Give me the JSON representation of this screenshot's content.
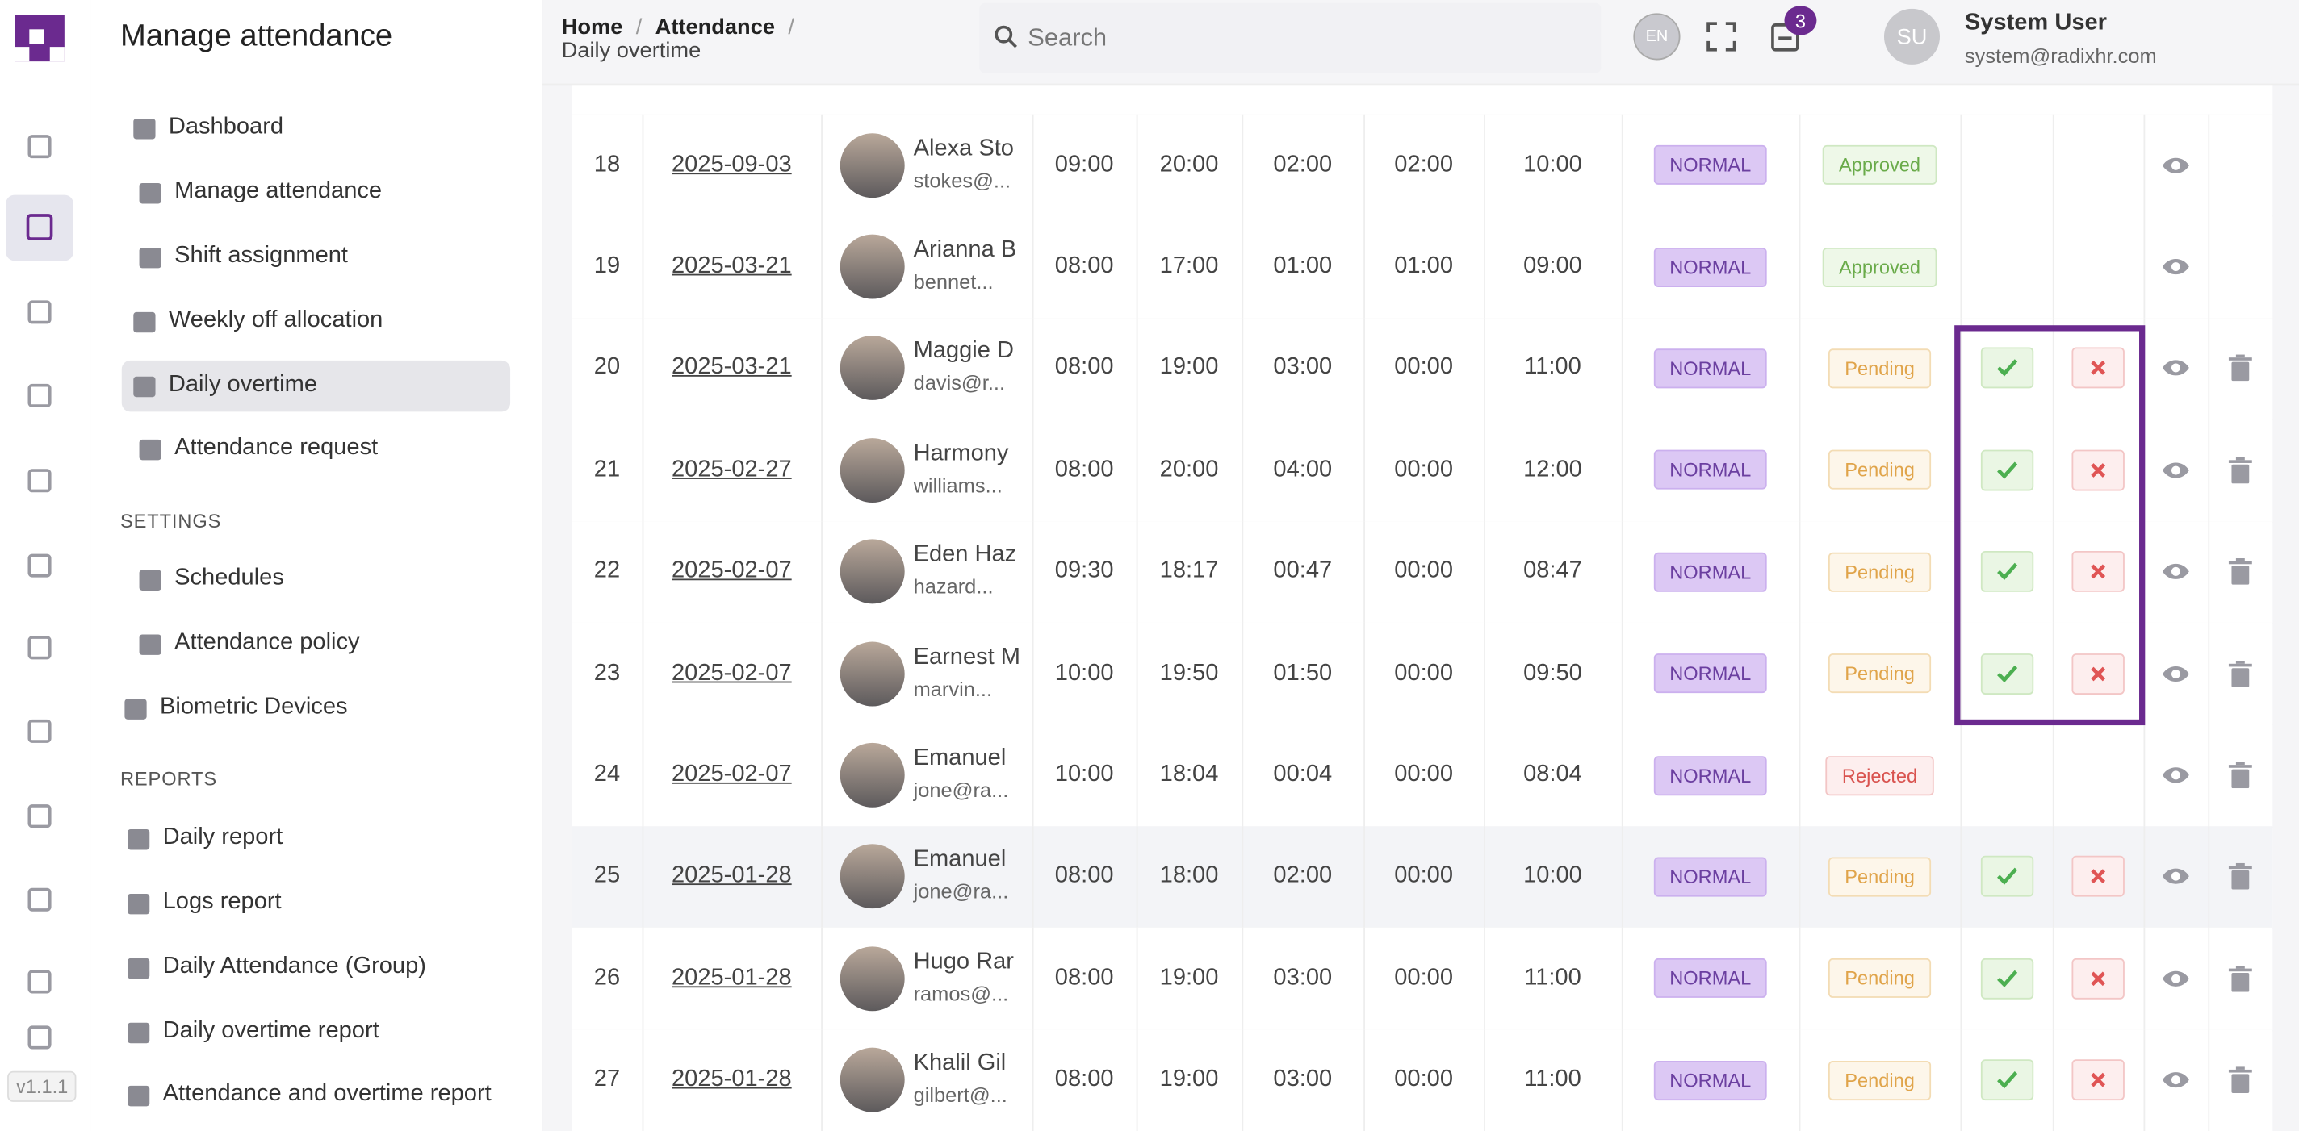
{
  "app": {
    "version": "v1.1.1"
  },
  "sidebar": {
    "title": "Manage attendance",
    "items": [
      "Dashboard",
      "Manage attendance",
      "Shift assignment",
      "Weekly off allocation",
      "Daily overtime",
      "Attendance request"
    ],
    "settings": {
      "title": "SETTINGS",
      "items": [
        "Schedules",
        "Attendance policy",
        "Biometric Devices"
      ]
    },
    "reports": {
      "title": "REPORTS",
      "items": [
        "Daily report",
        "Logs report",
        "Daily Attendance (Group)",
        "Daily overtime report",
        "Attendance and overtime report"
      ]
    }
  },
  "header": {
    "breadcrumb": [
      "Home",
      "Attendance",
      "Daily overtime"
    ],
    "search_placeholder": "Search",
    "language": "EN",
    "notifications": "3",
    "avatar": "SU",
    "user_name": "System User",
    "user_email": "system@radixhr.com"
  },
  "table": {
    "rows": [
      [
        "18",
        "2025-09-03",
        "Alexa Sto",
        "stokes@...",
        "09:00",
        "20:00",
        "02:00",
        "02:00",
        "10:00",
        "NORMAL",
        "Approved"
      ],
      [
        "19",
        "2025-03-21",
        "Arianna B",
        "bennet...",
        "08:00",
        "17:00",
        "01:00",
        "01:00",
        "09:00",
        "NORMAL",
        "Approved"
      ],
      [
        "20",
        "2025-03-21",
        "Maggie D",
        "davis@r...",
        "08:00",
        "19:00",
        "03:00",
        "00:00",
        "11:00",
        "NORMAL",
        "Pending"
      ],
      [
        "21",
        "2025-02-27",
        "Harmony",
        "williams...",
        "08:00",
        "20:00",
        "04:00",
        "00:00",
        "12:00",
        "NORMAL",
        "Pending"
      ],
      [
        "22",
        "2025-02-07",
        "Eden Haz",
        "hazard...",
        "09:30",
        "18:17",
        "00:47",
        "00:00",
        "08:47",
        "NORMAL",
        "Pending"
      ],
      [
        "23",
        "2025-02-07",
        "Earnest M",
        "marvin...",
        "10:00",
        "19:50",
        "01:50",
        "00:00",
        "09:50",
        "NORMAL",
        "Pending"
      ],
      [
        "24",
        "2025-02-07",
        "Emanuel",
        "jone@ra...",
        "10:00",
        "18:04",
        "00:04",
        "00:00",
        "08:04",
        "NORMAL",
        "Rejected"
      ],
      [
        "25",
        "2025-01-28",
        "Emanuel",
        "jone@ra...",
        "08:00",
        "18:00",
        "02:00",
        "00:00",
        "10:00",
        "NORMAL",
        "Pending"
      ],
      [
        "26",
        "2025-01-28",
        "Hugo Rar",
        "ramos@...",
        "08:00",
        "19:00",
        "03:00",
        "00:00",
        "11:00",
        "NORMAL",
        "Pending"
      ],
      [
        "27",
        "2025-01-28",
        "Khalil Gil",
        "gilbert@...",
        "08:00",
        "19:00",
        "03:00",
        "00:00",
        "11:00",
        "NORMAL",
        "Pending"
      ]
    ]
  }
}
